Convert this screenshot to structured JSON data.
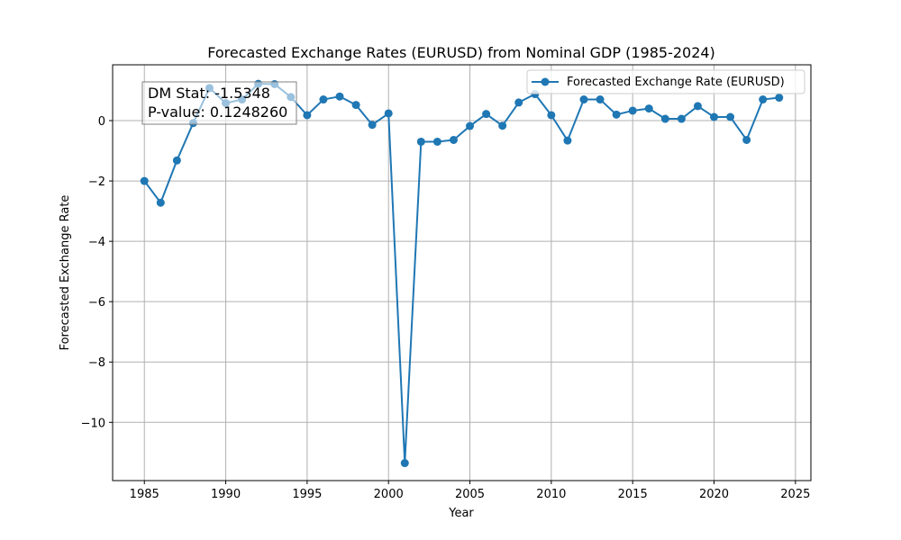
{
  "chart_data": {
    "type": "line",
    "title": "Forecasted Exchange Rates (EURUSD) from Nominal GDP (1985-2024)",
    "xlabel": "Year",
    "ylabel": "Forecasted Exchange Rate",
    "xlim": [
      1983.05,
      2025.95
    ],
    "ylim": [
      -11.93,
      1.85
    ],
    "xticks": [
      1985,
      1990,
      1995,
      2000,
      2005,
      2010,
      2015,
      2020,
      2025
    ],
    "yticks": [
      -10,
      -8,
      -6,
      -4,
      -2,
      0
    ],
    "ytick_labels": [
      "−10",
      "−8",
      "−6",
      "−4",
      "−2",
      "0"
    ],
    "grid": true,
    "legend_position": "top-right",
    "color": "#1f77b4",
    "series": [
      {
        "name": "Forecasted Exchange Rate (EURUSD)",
        "x": [
          1985,
          1986,
          1987,
          1988,
          1989,
          1990,
          1991,
          1992,
          1993,
          1994,
          1995,
          1996,
          1997,
          1998,
          1999,
          2000,
          2001,
          2002,
          2003,
          2004,
          2005,
          2006,
          2007,
          2008,
          2009,
          2010,
          2011,
          2012,
          2013,
          2014,
          2015,
          2016,
          2017,
          2018,
          2019,
          2020,
          2021,
          2022,
          2023,
          2024
        ],
        "values": [
          -2.0,
          -2.72,
          -1.32,
          -0.08,
          1.08,
          0.58,
          0.7,
          1.22,
          1.21,
          0.78,
          0.18,
          0.7,
          0.8,
          0.52,
          -0.14,
          0.24,
          -11.35,
          -0.7,
          -0.7,
          -0.64,
          -0.18,
          0.22,
          -0.17,
          0.6,
          0.88,
          0.18,
          -0.66,
          0.7,
          0.7,
          0.2,
          0.33,
          0.4,
          0.06,
          0.06,
          0.48,
          0.12,
          0.12,
          -0.64,
          0.7,
          0.76
        ]
      }
    ],
    "annotation": {
      "line1": "DM Stat: -1.5348",
      "line2": "P-value: 0.1248260"
    }
  }
}
